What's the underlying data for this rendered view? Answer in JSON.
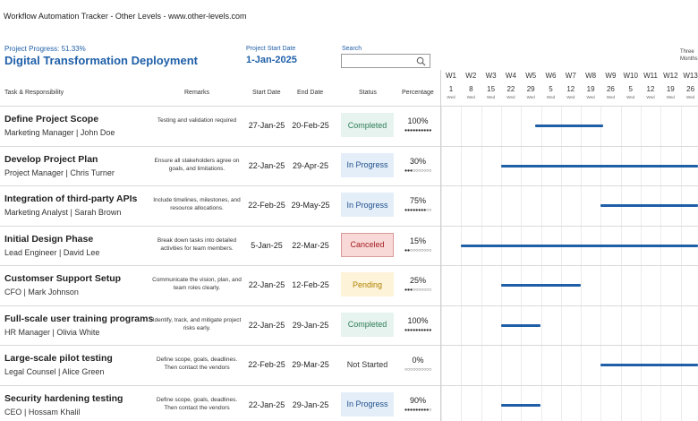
{
  "header": {
    "app_title": "Workflow Automation Tracker",
    "brand": "Other Levels",
    "site": "www.other-levels.com",
    "separator": "-"
  },
  "project": {
    "progress_label": "Project Progress: 51.33%",
    "progress_value": 51.33,
    "title": "Digital Transformation Deployment",
    "start_label": "Project Start Date",
    "start_value": "1-Jan-2025"
  },
  "search": {
    "label": "Search",
    "value": "",
    "placeholder": ""
  },
  "view_mode": "Three Months",
  "columns": {
    "task": "Task & Responsibility",
    "remarks": "Remarks",
    "start": "Start Date",
    "end": "End Date",
    "status": "Status",
    "percentage": "Percentage"
  },
  "weeks": [
    {
      "label": "W1",
      "date": "1",
      "day": "Wed"
    },
    {
      "label": "W2",
      "date": "8",
      "day": "Wed"
    },
    {
      "label": "W3",
      "date": "15",
      "day": "Wed"
    },
    {
      "label": "W4",
      "date": "22",
      "day": "Wed"
    },
    {
      "label": "W5",
      "date": "29",
      "day": "Wed"
    },
    {
      "label": "W6",
      "date": "5",
      "day": "Wed"
    },
    {
      "label": "W7",
      "date": "12",
      "day": "Wed"
    },
    {
      "label": "W8",
      "date": "19",
      "day": "Wed"
    },
    {
      "label": "W9",
      "date": "26",
      "day": "Wed"
    },
    {
      "label": "W10",
      "date": "5",
      "day": "Wed"
    },
    {
      "label": "W11",
      "date": "12",
      "day": "Wed"
    },
    {
      "label": "W12",
      "date": "19",
      "day": "Wed"
    },
    {
      "label": "W13",
      "date": "26",
      "day": "Wed"
    }
  ],
  "tasks": [
    {
      "name": "Define Project Scope",
      "responsibility": "Marketing Manager | John Doe",
      "remarks": "Testing and validation required",
      "start": "27-Jan-25",
      "end": "20-Feb-25",
      "status": "Completed",
      "status_key": "completed",
      "percentage": "100%",
      "pct_value": 100,
      "bar_start_week": 4.7,
      "bar_end_week": 8.1
    },
    {
      "name": "Develop Project Plan",
      "responsibility": "Project Manager | Chris Turner",
      "remarks": "Ensure all stakeholders agree on goals, and limitations.",
      "start": "22-Jan-25",
      "end": "29-Apr-25",
      "status": "In Progress",
      "status_key": "inprogress",
      "percentage": "30%",
      "pct_value": 30,
      "bar_start_week": 3.0,
      "bar_end_week": 13.0
    },
    {
      "name": "Integration of third-party APIs",
      "responsibility": "Marketing Analyst | Sarah Brown",
      "remarks": "Include timelines, milestones, and resource allocations.",
      "start": "22-Feb-25",
      "end": "29-May-25",
      "status": "In Progress",
      "status_key": "inprogress",
      "percentage": "75%",
      "pct_value": 75,
      "bar_start_week": 8.0,
      "bar_end_week": 13.0
    },
    {
      "name": "Initial Design Phase",
      "responsibility": "Lead Engineer | David Lee",
      "remarks": "Break down tasks into detailed activities for team members.",
      "start": "5-Jan-25",
      "end": "22-Mar-25",
      "status": "Canceled",
      "status_key": "canceled",
      "percentage": "15%",
      "pct_value": 15,
      "bar_start_week": 1.0,
      "bar_end_week": 13.0
    },
    {
      "name": "Customser Support Setup",
      "responsibility": "CFO | Mark Johnson",
      "remarks": "Communicate the vision, plan, and team roles clearly.",
      "start": "22-Jan-25",
      "end": "12-Feb-25",
      "status": "Pending",
      "status_key": "pending",
      "percentage": "25%",
      "pct_value": 25,
      "bar_start_week": 3.0,
      "bar_end_week": 7.0
    },
    {
      "name": "Full-scale user training programs",
      "responsibility": "HR Manager | Olivia White",
      "remarks": "Identify, track, and mitigate project risks early.",
      "start": "22-Jan-25",
      "end": "29-Jan-25",
      "status": "Completed",
      "status_key": "completed",
      "percentage": "100%",
      "pct_value": 100,
      "bar_start_week": 3.0,
      "bar_end_week": 5.0
    },
    {
      "name": "Large-scale pilot testing",
      "responsibility": "Legal Counsel | Alice Green",
      "remarks": "Define scope, goals, deadlines. Then contact the vendors",
      "start": "22-Feb-25",
      "end": "29-Mar-25",
      "status": "Not Started",
      "status_key": "notstarted",
      "percentage": "0%",
      "pct_value": 0,
      "bar_start_week": 8.0,
      "bar_end_week": 13.0
    },
    {
      "name": "Security hardening testing",
      "responsibility": "CEO | Hossam Khalil",
      "remarks": "Define scope, goals, deadlines. Then contact the vendors",
      "start": "22-Jan-25",
      "end": "29-Jan-25",
      "status": "In Progress",
      "status_key": "inprogress",
      "percentage": "90%",
      "pct_value": 90,
      "bar_start_week": 3.0,
      "bar_end_week": 5.0
    }
  ],
  "colors": {
    "accent": "#1f5fa8",
    "bar": "#1f5fa8",
    "completed_bg": "#e6f3ee",
    "inprogress_bg": "#e4eef8",
    "canceled_bg": "#f9d8d8",
    "pending_bg": "#fdf3d8"
  }
}
